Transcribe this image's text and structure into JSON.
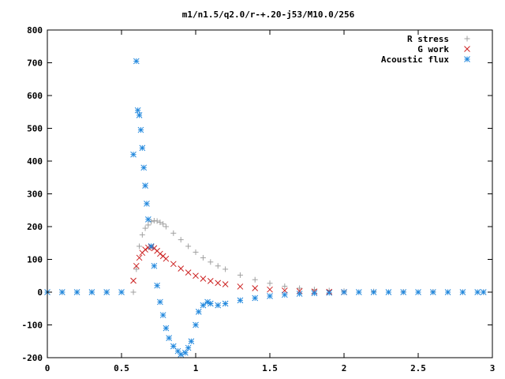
{
  "chart_data": {
    "type": "scatter",
    "title": "m1/n1.5/q2.0/r-+.20-j53/M10.0/256",
    "xlabel": "",
    "ylabel": "",
    "xlim": [
      0,
      3
    ],
    "ylim": [
      -200,
      800
    ],
    "x_ticks": [
      0,
      0.5,
      1,
      1.5,
      2,
      2.5,
      3
    ],
    "x_tick_labels": [
      "0",
      "0.5",
      "1",
      "1.5",
      "2",
      "2.5",
      "3"
    ],
    "y_ticks": [
      -200,
      -100,
      0,
      100,
      200,
      300,
      400,
      500,
      600,
      700,
      800
    ],
    "y_tick_labels": [
      "-200",
      "-100",
      "0",
      "100",
      "200",
      "300",
      "400",
      "500",
      "600",
      "700",
      "800"
    ],
    "grid": false,
    "legend_position": "top-right",
    "series": [
      {
        "name": "R stress",
        "marker": "plus",
        "color": "#a0a0a0",
        "x": [
          0.0,
          0.1,
          0.2,
          0.3,
          0.4,
          0.5,
          0.58,
          0.6,
          0.62,
          0.64,
          0.66,
          0.68,
          0.7,
          0.72,
          0.74,
          0.76,
          0.78,
          0.8,
          0.85,
          0.9,
          0.95,
          1.0,
          1.05,
          1.1,
          1.15,
          1.2,
          1.3,
          1.4,
          1.5,
          1.6,
          1.7,
          1.8,
          1.9,
          2.0,
          2.2,
          2.4,
          2.6,
          2.8,
          2.94
        ],
        "y": [
          0,
          0,
          0,
          0,
          0,
          0,
          0,
          70,
          140,
          175,
          195,
          205,
          215,
          218,
          217,
          213,
          208,
          200,
          180,
          160,
          140,
          122,
          105,
          92,
          80,
          70,
          52,
          38,
          27,
          18,
          12,
          8,
          5,
          3,
          2,
          1,
          1,
          0,
          0
        ]
      },
      {
        "name": "G work",
        "marker": "cross",
        "color": "#cc2222",
        "x": [
          0.58,
          0.6,
          0.62,
          0.64,
          0.66,
          0.68,
          0.7,
          0.72,
          0.74,
          0.76,
          0.78,
          0.8,
          0.85,
          0.9,
          0.95,
          1.0,
          1.05,
          1.1,
          1.15,
          1.2,
          1.3,
          1.4,
          1.5,
          1.6,
          1.7,
          1.8,
          1.9,
          2.0
        ],
        "y": [
          35,
          80,
          105,
          120,
          130,
          136,
          138,
          134,
          126,
          117,
          110,
          102,
          86,
          72,
          60,
          50,
          41,
          34,
          28,
          24,
          17,
          12,
          8,
          5,
          3,
          2,
          1,
          0
        ]
      },
      {
        "name": "Acoustic flux",
        "marker": "star",
        "color": "#2288dd",
        "x": [
          0.0,
          0.1,
          0.2,
          0.3,
          0.4,
          0.5,
          0.58,
          0.6,
          0.61,
          0.62,
          0.63,
          0.64,
          0.65,
          0.66,
          0.67,
          0.68,
          0.7,
          0.72,
          0.74,
          0.76,
          0.78,
          0.8,
          0.82,
          0.85,
          0.88,
          0.9,
          0.93,
          0.95,
          0.97,
          1.0,
          1.02,
          1.05,
          1.08,
          1.1,
          1.15,
          1.2,
          1.3,
          1.4,
          1.5,
          1.6,
          1.7,
          1.8,
          1.9,
          2.0,
          2.1,
          2.2,
          2.3,
          2.4,
          2.5,
          2.6,
          2.7,
          2.8,
          2.9,
          2.94
        ],
        "y": [
          0,
          0,
          0,
          0,
          0,
          0,
          420,
          705,
          555,
          540,
          495,
          440,
          380,
          325,
          270,
          222,
          140,
          80,
          20,
          -30,
          -70,
          -110,
          -140,
          -165,
          -180,
          -190,
          -185,
          -170,
          -150,
          -100,
          -60,
          -40,
          -30,
          -35,
          -40,
          -35,
          -25,
          -18,
          -12,
          -8,
          -5,
          -3,
          -2,
          0,
          0,
          0,
          0,
          0,
          0,
          0,
          0,
          0,
          0,
          0
        ]
      }
    ]
  }
}
